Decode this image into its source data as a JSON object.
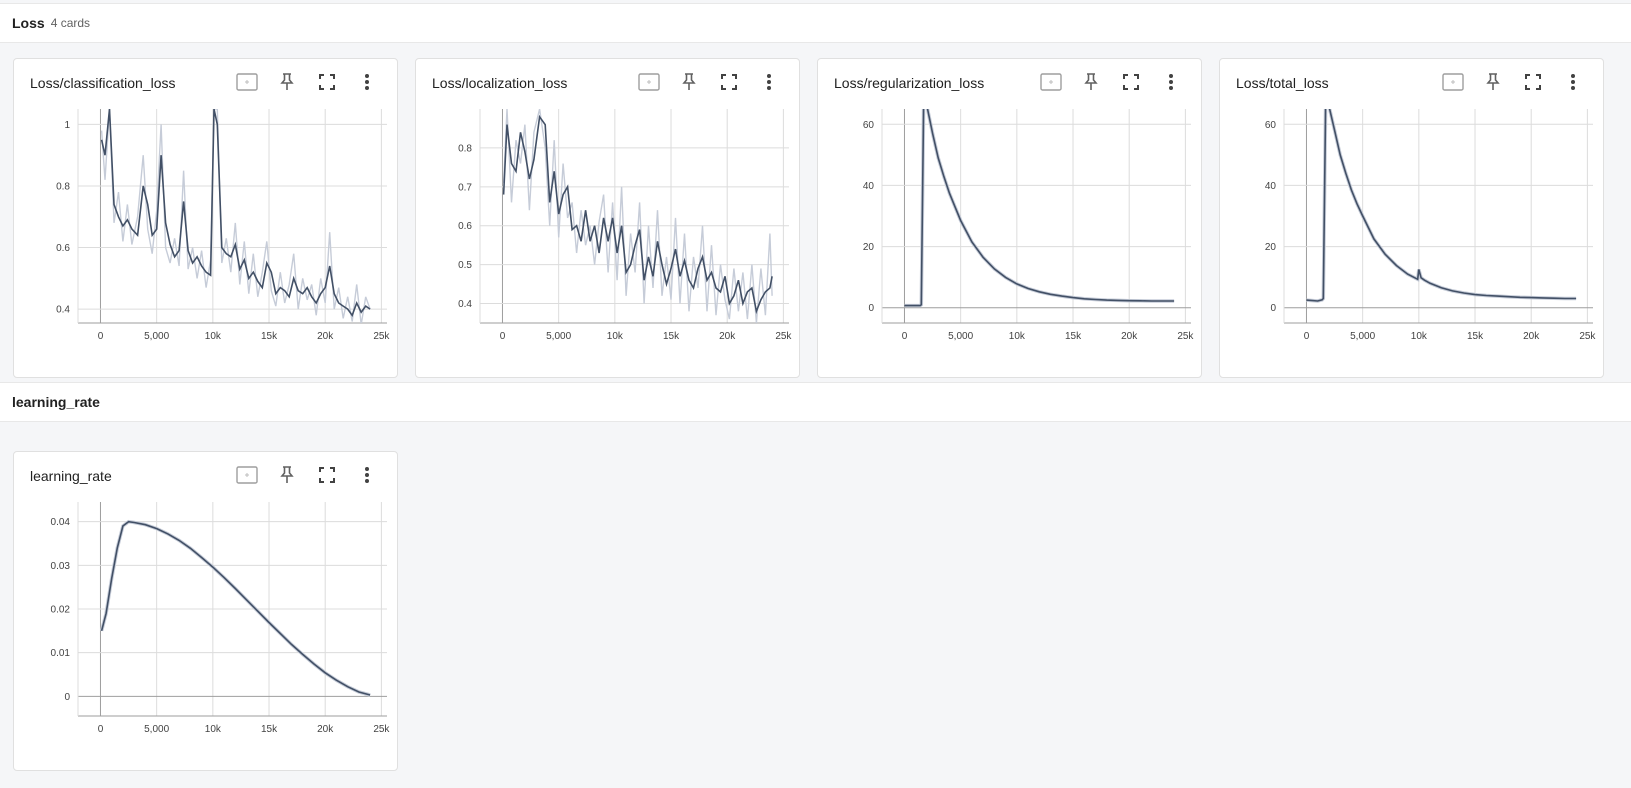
{
  "groups": [
    {
      "title": "Loss",
      "count": "4 cards"
    },
    {
      "title": "learning_rate",
      "count": ""
    }
  ],
  "colors": {
    "line": "#425066",
    "raw": "#c6ccd8",
    "grid": "#dcdcdc",
    "axis": "#9e9e9e"
  },
  "icons": [
    "fit-domain-icon",
    "pin-icon",
    "fullscreen-icon",
    "more-vert-icon"
  ],
  "chart_data": [
    {
      "type": "line",
      "title": "Loss/classification_loss",
      "xlim": [
        -2000,
        25500
      ],
      "ylim": [
        0.355,
        1.05
      ],
      "xticks": [
        0,
        5000,
        10000,
        15000,
        20000,
        25000
      ],
      "xtick_labels": [
        "0",
        "5,000",
        "10k",
        "15k",
        "20k",
        "25k"
      ],
      "yticks": [
        0.4,
        0.6,
        0.8,
        1
      ],
      "ytick_labels": [
        "0.4",
        "0.6",
        "0.8",
        "1"
      ],
      "x": [
        100,
        400,
        800,
        1200,
        1600,
        2000,
        2400,
        2800,
        3300,
        3800,
        4200,
        4600,
        5000,
        5400,
        5800,
        6200,
        6600,
        7000,
        7400,
        7800,
        8200,
        8600,
        9000,
        9400,
        9800,
        10100,
        10400,
        10800,
        11200,
        11600,
        12000,
        12400,
        12800,
        13200,
        13600,
        14000,
        14400,
        14800,
        15200,
        15600,
        16000,
        16400,
        16800,
        17200,
        17600,
        18000,
        18400,
        18800,
        19200,
        19600,
        20000,
        20400,
        20800,
        21200,
        21600,
        22000,
        22400,
        22800,
        23200,
        23600,
        24000
      ],
      "smoothed": [
        0.95,
        0.9,
        1.05,
        0.74,
        0.7,
        0.67,
        0.69,
        0.66,
        0.64,
        0.8,
        0.74,
        0.64,
        0.66,
        0.9,
        0.68,
        0.61,
        0.57,
        0.59,
        0.75,
        0.59,
        0.55,
        0.57,
        0.54,
        0.52,
        0.51,
        1.05,
        1.0,
        0.6,
        0.58,
        0.57,
        0.61,
        0.53,
        0.56,
        0.5,
        0.52,
        0.49,
        0.47,
        0.55,
        0.52,
        0.45,
        0.47,
        0.46,
        0.44,
        0.5,
        0.46,
        0.45,
        0.47,
        0.44,
        0.42,
        0.45,
        0.47,
        0.54,
        0.45,
        0.42,
        0.41,
        0.4,
        0.38,
        0.42,
        0.39,
        0.41,
        0.4
      ],
      "raw": [
        0.98,
        0.82,
        1.05,
        0.68,
        0.78,
        0.62,
        0.74,
        0.61,
        0.7,
        0.9,
        0.66,
        0.58,
        0.72,
        1.0,
        0.6,
        0.55,
        0.63,
        0.54,
        0.85,
        0.53,
        0.6,
        0.5,
        0.59,
        0.47,
        0.56,
        1.05,
        1.05,
        0.55,
        0.63,
        0.52,
        0.68,
        0.48,
        0.62,
        0.45,
        0.58,
        0.44,
        0.52,
        0.62,
        0.46,
        0.41,
        0.52,
        0.42,
        0.48,
        0.58,
        0.4,
        0.5,
        0.43,
        0.48,
        0.38,
        0.5,
        0.42,
        0.65,
        0.4,
        0.47,
        0.37,
        0.44,
        0.36,
        0.48,
        0.35,
        0.44,
        0.4
      ]
    },
    {
      "type": "line",
      "title": "Loss/localization_loss",
      "xlim": [
        -2000,
        25500
      ],
      "ylim": [
        0.35,
        0.9
      ],
      "xticks": [
        0,
        5000,
        10000,
        15000,
        20000,
        25000
      ],
      "xtick_labels": [
        "0",
        "5,000",
        "10k",
        "15k",
        "20k",
        "25k"
      ],
      "yticks": [
        0.4,
        0.5,
        0.6,
        0.7,
        0.8
      ],
      "ytick_labels": [
        "0.4",
        "0.5",
        "0.6",
        "0.7",
        "0.8"
      ],
      "x": [
        100,
        400,
        800,
        1200,
        1600,
        2000,
        2400,
        2800,
        3300,
        3800,
        4200,
        4600,
        5000,
        5400,
        5800,
        6200,
        6600,
        7000,
        7400,
        7800,
        8200,
        8600,
        9000,
        9400,
        9800,
        10200,
        10600,
        11000,
        11400,
        11800,
        12200,
        12600,
        13000,
        13400,
        13800,
        14200,
        14600,
        15000,
        15400,
        15800,
        16200,
        16600,
        17000,
        17400,
        17800,
        18200,
        18600,
        19000,
        19400,
        19800,
        20200,
        20600,
        21000,
        21400,
        21800,
        22200,
        22600,
        23000,
        23400,
        23800,
        24000
      ],
      "smoothed": [
        0.68,
        0.86,
        0.76,
        0.74,
        0.84,
        0.79,
        0.72,
        0.77,
        0.88,
        0.86,
        0.66,
        0.74,
        0.63,
        0.68,
        0.7,
        0.59,
        0.6,
        0.56,
        0.64,
        0.56,
        0.6,
        0.53,
        0.62,
        0.56,
        0.62,
        0.53,
        0.6,
        0.48,
        0.5,
        0.55,
        0.59,
        0.46,
        0.52,
        0.47,
        0.56,
        0.5,
        0.45,
        0.49,
        0.54,
        0.47,
        0.51,
        0.46,
        0.44,
        0.49,
        0.52,
        0.46,
        0.48,
        0.44,
        0.43,
        0.47,
        0.4,
        0.42,
        0.46,
        0.4,
        0.43,
        0.44,
        0.38,
        0.41,
        0.43,
        0.44,
        0.47
      ],
      "raw": [
        0.71,
        0.9,
        0.66,
        0.82,
        0.76,
        0.86,
        0.64,
        0.84,
        0.9,
        0.8,
        0.6,
        0.82,
        0.57,
        0.76,
        0.62,
        0.66,
        0.53,
        0.64,
        0.55,
        0.6,
        0.5,
        0.61,
        0.68,
        0.48,
        0.66,
        0.46,
        0.7,
        0.42,
        0.58,
        0.48,
        0.66,
        0.4,
        0.6,
        0.44,
        0.64,
        0.42,
        0.52,
        0.41,
        0.62,
        0.4,
        0.58,
        0.38,
        0.52,
        0.44,
        0.6,
        0.38,
        0.55,
        0.37,
        0.5,
        0.41,
        0.36,
        0.49,
        0.38,
        0.48,
        0.36,
        0.5,
        0.35,
        0.49,
        0.37,
        0.58,
        0.42
      ]
    },
    {
      "type": "line",
      "title": "Loss/regularization_loss",
      "xlim": [
        -2000,
        25500
      ],
      "ylim": [
        -5,
        65
      ],
      "xticks": [
        0,
        5000,
        10000,
        15000,
        20000,
        25000
      ],
      "xtick_labels": [
        "0",
        "5,000",
        "10k",
        "15k",
        "20k",
        "25k"
      ],
      "yticks": [
        0,
        20,
        40,
        60
      ],
      "ytick_labels": [
        "0",
        "20",
        "40",
        "60"
      ],
      "x": [
        0,
        1400,
        1500,
        1700,
        2000,
        2500,
        3000,
        3500,
        4000,
        4500,
        5000,
        6000,
        7000,
        8000,
        9000,
        10000,
        11000,
        12000,
        13000,
        14000,
        15000,
        16000,
        17000,
        18000,
        19000,
        20000,
        21000,
        22000,
        23000,
        24000
      ],
      "smoothed": [
        0.7,
        0.7,
        1,
        66,
        66,
        57,
        49,
        43,
        37.5,
        33,
        28.5,
        21.5,
        16.5,
        12.7,
        9.9,
        7.8,
        6.3,
        5.2,
        4.4,
        3.8,
        3.3,
        2.9,
        2.7,
        2.5,
        2.4,
        2.3,
        2.25,
        2.2,
        2.2,
        2.2
      ],
      "raw": null
    },
    {
      "type": "line",
      "title": "Loss/total_loss",
      "xlim": [
        -2000,
        25500
      ],
      "ylim": [
        -5,
        65
      ],
      "xticks": [
        0,
        5000,
        10000,
        15000,
        20000,
        25000
      ],
      "xtick_labels": [
        "0",
        "5,000",
        "10k",
        "15k",
        "20k",
        "25k"
      ],
      "yticks": [
        0,
        20,
        40,
        60
      ],
      "ytick_labels": [
        "0",
        "20",
        "40",
        "60"
      ],
      "x": [
        0,
        1000,
        1400,
        1500,
        1700,
        2000,
        2500,
        3000,
        3500,
        4000,
        4500,
        5000,
        6000,
        7000,
        8000,
        9000,
        9900,
        10000,
        10200,
        10500,
        11000,
        12000,
        13000,
        14000,
        15000,
        16000,
        17000,
        18000,
        19000,
        20000,
        21000,
        22000,
        23000,
        24000
      ],
      "smoothed": [
        2.5,
        2.2,
        2.6,
        3,
        66,
        66,
        58,
        50,
        44,
        38.5,
        34,
        30,
        22.5,
        17.5,
        13.8,
        11,
        9.3,
        12.5,
        9.8,
        9,
        8,
        6.5,
        5.5,
        4.8,
        4.3,
        4,
        3.8,
        3.6,
        3.4,
        3.3,
        3.2,
        3.1,
        3,
        3
      ],
      "raw": null
    },
    {
      "type": "line",
      "title": "learning_rate",
      "xlim": [
        -2000,
        25500
      ],
      "ylim": [
        -0.0045,
        0.0445
      ],
      "xticks": [
        0,
        5000,
        10000,
        15000,
        20000,
        25000
      ],
      "xtick_labels": [
        "0",
        "5,000",
        "10k",
        "15k",
        "20k",
        "25k"
      ],
      "yticks": [
        0,
        0.01,
        0.02,
        0.03,
        0.04
      ],
      "ytick_labels": [
        "0",
        "0.01",
        "0.02",
        "0.03",
        "0.04"
      ],
      "x": [
        100,
        500,
        1000,
        1500,
        2000,
        2500,
        3000,
        4000,
        5000,
        6000,
        7000,
        8000,
        9000,
        10000,
        11000,
        12000,
        13000,
        14000,
        15000,
        16000,
        17000,
        18000,
        19000,
        20000,
        21000,
        22000,
        23000,
        24000
      ],
      "smoothed": [
        0.015,
        0.019,
        0.027,
        0.034,
        0.039,
        0.04,
        0.0398,
        0.0393,
        0.0384,
        0.0372,
        0.0357,
        0.0339,
        0.0318,
        0.0296,
        0.0272,
        0.0247,
        0.0221,
        0.0195,
        0.0169,
        0.0144,
        0.0119,
        0.0096,
        0.0074,
        0.0054,
        0.0037,
        0.0022,
        0.001,
        0.0003
      ],
      "raw": null
    }
  ]
}
